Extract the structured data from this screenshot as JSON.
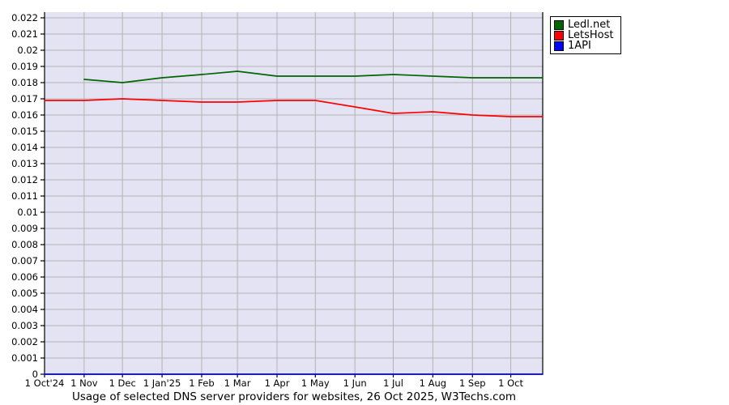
{
  "title": "Usage of selected DNS server providers for websites, 26 Oct 2025, W3Techs.com",
  "legend": {
    "items": [
      {
        "label": "Ledl.net",
        "color": "#006600"
      },
      {
        "label": "LetsHost",
        "color": "#ff0000"
      },
      {
        "label": "1API",
        "color": "#0000ff"
      }
    ]
  },
  "chart_data": {
    "type": "line",
    "title": "Usage of selected DNS server providers for websites, 26 Oct 2025, W3Techs.com",
    "x_unit": "days since 1 Oct 2024",
    "x_range": [
      0,
      390
    ],
    "ylim": [
      0,
      0.02235
    ],
    "y_gridline_step": 0.001,
    "grid": true,
    "legend_position": "top-right",
    "plot_bg": "#e3e3f3",
    "grid_color": "#b3b3b3",
    "axis_color": "#000000",
    "y_tick_labels": [
      "0",
      "0.001",
      "0.002",
      "0.003",
      "0.004",
      "0.005",
      "0.006",
      "0.007",
      "0.008",
      "0.009",
      "0.01",
      "0.011",
      "0.012",
      "0.013",
      "0.014",
      "0.015",
      "0.016",
      "0.017",
      "0.018",
      "0.019",
      "0.02",
      "0.021",
      "0.022"
    ],
    "x_ticks": [
      {
        "day": 0,
        "label": "1 Oct'24"
      },
      {
        "day": 31,
        "label": "1 Nov"
      },
      {
        "day": 61,
        "label": "1 Dec"
      },
      {
        "day": 92,
        "label": "1 Jan'25"
      },
      {
        "day": 123,
        "label": "1 Feb"
      },
      {
        "day": 151,
        "label": "1 Mar"
      },
      {
        "day": 182,
        "label": "1 Apr"
      },
      {
        "day": 212,
        "label": "1 May"
      },
      {
        "day": 243,
        "label": "1 Jun"
      },
      {
        "day": 273,
        "label": "1 Jul"
      },
      {
        "day": 304,
        "label": "1 Aug"
      },
      {
        "day": 335,
        "label": "1 Sep"
      },
      {
        "day": 365,
        "label": "1 Oct"
      }
    ],
    "series": [
      {
        "name": "Ledl.net",
        "color": "#006600",
        "points": [
          {
            "day": 31,
            "value": 0.0182
          },
          {
            "day": 61,
            "value": 0.018
          },
          {
            "day": 92,
            "value": 0.0183
          },
          {
            "day": 123,
            "value": 0.0185
          },
          {
            "day": 151,
            "value": 0.0187
          },
          {
            "day": 182,
            "value": 0.0184
          },
          {
            "day": 212,
            "value": 0.0184
          },
          {
            "day": 243,
            "value": 0.0184
          },
          {
            "day": 273,
            "value": 0.0185
          },
          {
            "day": 304,
            "value": 0.0184
          },
          {
            "day": 335,
            "value": 0.0183
          },
          {
            "day": 365,
            "value": 0.0183
          },
          {
            "day": 390,
            "value": 0.0183
          }
        ]
      },
      {
        "name": "LetsHost",
        "color": "#ff0000",
        "points": [
          {
            "day": 0,
            "value": 0.0169
          },
          {
            "day": 31,
            "value": 0.0169
          },
          {
            "day": 61,
            "value": 0.017
          },
          {
            "day": 92,
            "value": 0.0169
          },
          {
            "day": 123,
            "value": 0.0168
          },
          {
            "day": 151,
            "value": 0.0168
          },
          {
            "day": 182,
            "value": 0.0169
          },
          {
            "day": 212,
            "value": 0.0169
          },
          {
            "day": 243,
            "value": 0.0165
          },
          {
            "day": 273,
            "value": 0.0161
          },
          {
            "day": 304,
            "value": 0.0162
          },
          {
            "day": 335,
            "value": 0.016
          },
          {
            "day": 365,
            "value": 0.0159
          },
          {
            "day": 390,
            "value": 0.0159
          }
        ]
      },
      {
        "name": "1API",
        "color": "#0000ff",
        "points": [
          {
            "day": 0,
            "value": 0
          },
          {
            "day": 31,
            "value": 0
          },
          {
            "day": 61,
            "value": 0
          },
          {
            "day": 92,
            "value": 0
          },
          {
            "day": 123,
            "value": 0
          },
          {
            "day": 151,
            "value": 0
          },
          {
            "day": 182,
            "value": 0
          },
          {
            "day": 212,
            "value": 0
          },
          {
            "day": 243,
            "value": 0
          },
          {
            "day": 273,
            "value": 0
          },
          {
            "day": 304,
            "value": 0
          },
          {
            "day": 335,
            "value": 0
          },
          {
            "day": 365,
            "value": 0
          },
          {
            "day": 390,
            "value": 0
          }
        ]
      }
    ]
  }
}
